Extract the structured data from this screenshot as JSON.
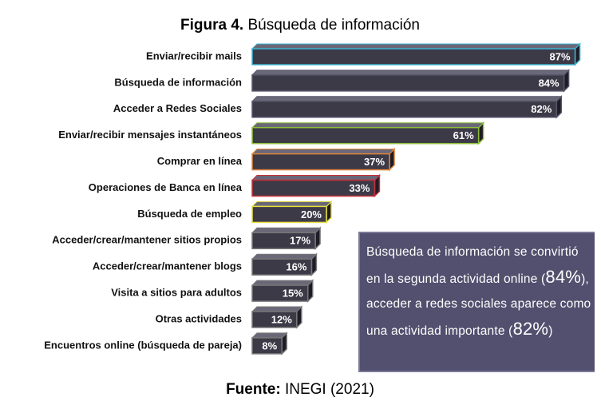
{
  "chart_data": {
    "type": "bar",
    "orientation": "horizontal",
    "title": {
      "label": "Figura 4.",
      "text": "Búsqueda de información"
    },
    "source": {
      "label": "Fuente:",
      "text": "INEGI (2021)"
    },
    "categories": [
      "Enviar/recibir mails",
      "Búsqueda de información",
      "Acceder a Redes Sociales",
      "Enviar/recibir mensajes instantáneos",
      "Comprar en línea",
      "Operaciones de Banca en línea",
      "Búsqueda de empleo",
      "Acceder/crear/mantener sitios propios",
      "Acceder/crear/mantener blogs",
      "Visita a sitios para adultos",
      "Otras actividades",
      "Encuentros online (búsqueda de pareja)"
    ],
    "values": [
      87,
      84,
      82,
      61,
      37,
      33,
      20,
      17,
      16,
      15,
      12,
      8
    ],
    "value_labels": [
      "87%",
      "84%",
      "82%",
      "61%",
      "37%",
      "33%",
      "20%",
      "17%",
      "16%",
      "15%",
      "12%",
      "8%"
    ],
    "color": "#3d3a48",
    "outline_colors": [
      "#3fb3d0",
      "#55556a",
      "#55556a",
      "#8fbf3a",
      "#e0843a",
      "#c8303a",
      "#e6e040",
      "#777777",
      "#777777",
      "#777777",
      "#777777",
      "#777777"
    ],
    "annotation": [
      "Búsqueda de información se convirtió en la segunda actividad online (",
      "84%",
      "), acceder a redes sociales aparece como una actividad importante (",
      "82%",
      ")"
    ]
  }
}
